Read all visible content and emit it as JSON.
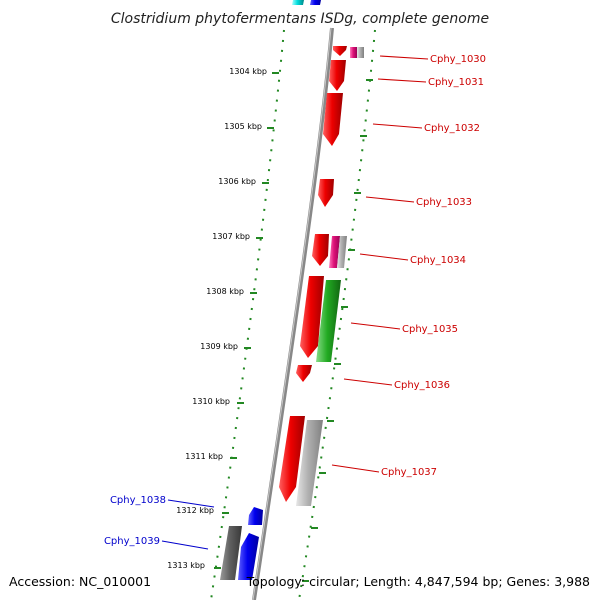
{
  "title": "Clostridium phytofermentans ISDg, complete genome",
  "accession_text": "Accession: NC_010001",
  "topology_text": "Topology: circular; Length: 4,847,594 bp; Genes: 3,988",
  "colors": {
    "forward_label": "#cc0000",
    "reverse_label": "#0000cc",
    "cds_red": "#ee0000",
    "cds_blue": "#0000ee",
    "cds_green": "#22aa22",
    "cds_magenta": "#dd1177",
    "cds_grey": "#b0b0b0",
    "cds_darkgrey": "#606060",
    "cds_cyan": "#00cccc",
    "ruler_dots": "#228822",
    "backbone": "#888888"
  },
  "ticks": [
    "1304 kbp",
    "1305 kbp",
    "1306 kbp",
    "1307 kbp",
    "1308 kbp",
    "1309 kbp",
    "1310 kbp",
    "1311 kbp",
    "1312 kbp",
    "1313 kbp"
  ],
  "genes": [
    {
      "name": "Cphy_1030",
      "strand": "+"
    },
    {
      "name": "Cphy_1031",
      "strand": "+"
    },
    {
      "name": "Cphy_1032",
      "strand": "+"
    },
    {
      "name": "Cphy_1033",
      "strand": "+"
    },
    {
      "name": "Cphy_1034",
      "strand": "+"
    },
    {
      "name": "Cphy_1035",
      "strand": "+"
    },
    {
      "name": "Cphy_1036",
      "strand": "+"
    },
    {
      "name": "Cphy_1037",
      "strand": "+"
    },
    {
      "name": "Cphy_1038",
      "strand": "-"
    },
    {
      "name": "Cphy_1039",
      "strand": "-"
    }
  ]
}
